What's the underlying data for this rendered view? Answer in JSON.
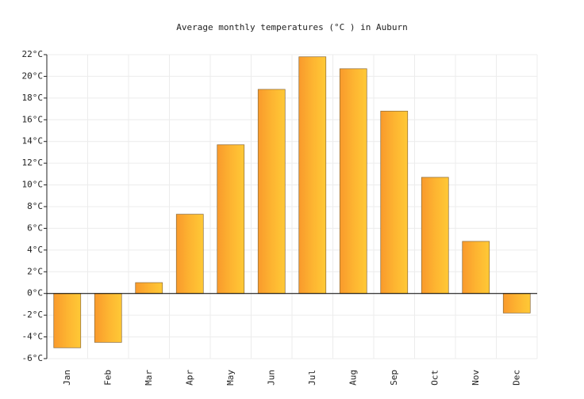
{
  "chart_data": {
    "type": "bar",
    "title": "Average monthly temperatures (°C ) in Auburn",
    "categories": [
      "Jan",
      "Feb",
      "Mar",
      "Apr",
      "May",
      "Jun",
      "Jul",
      "Aug",
      "Sep",
      "Oct",
      "Nov",
      "Dec"
    ],
    "values": [
      -5.0,
      -4.5,
      1.0,
      7.3,
      13.7,
      18.8,
      21.8,
      20.7,
      16.8,
      10.7,
      4.8,
      -1.8
    ],
    "color": "#fdb431",
    "ylim": [
      -6,
      22
    ],
    "yticks": [
      {
        "value": -6,
        "label": "-6°C"
      },
      {
        "value": -4,
        "label": "-4°C"
      },
      {
        "value": -2,
        "label": "-2°C"
      },
      {
        "value": 0,
        "label": "0°C"
      },
      {
        "value": 2,
        "label": "2°C"
      },
      {
        "value": 4,
        "label": "4°C"
      },
      {
        "value": 6,
        "label": "6°C"
      },
      {
        "value": 8,
        "label": "8°C"
      },
      {
        "value": 10,
        "label": "10°C"
      },
      {
        "value": 12,
        "label": "12°C"
      },
      {
        "value": 14,
        "label": "14°C"
      },
      {
        "value": 16,
        "label": "16°C"
      },
      {
        "value": 18,
        "label": "18°C"
      },
      {
        "value": 20,
        "label": "20°C"
      },
      {
        "value": 22,
        "label": "22°C"
      }
    ],
    "grid": true
  }
}
